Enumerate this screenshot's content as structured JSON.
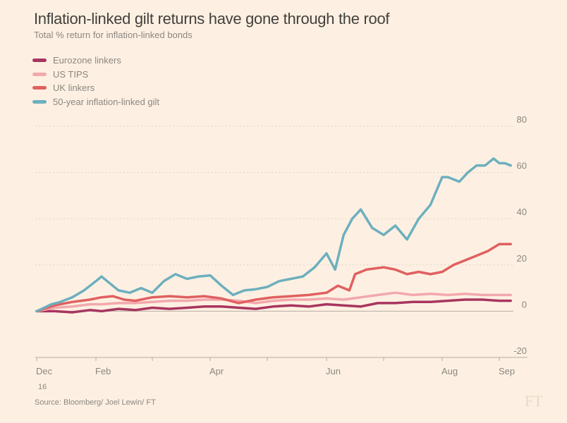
{
  "chart_data": {
    "type": "line",
    "title": "Inflation-linked gilt returns have gone through the roof",
    "subtitle": "Total % return for inflation-linked bonds",
    "xlabel": "",
    "ylabel": "",
    "ylim": [
      -20,
      80
    ],
    "yticks": [
      80,
      60,
      40,
      20,
      0,
      -20
    ],
    "xlim": [
      0,
      9.2
    ],
    "xticks": [
      {
        "pos": 0,
        "label": "Dec",
        "sub": "16"
      },
      {
        "pos": 1,
        "label": "Feb"
      },
      {
        "pos": 2,
        "label": ""
      },
      {
        "pos": 3,
        "label": "Apr"
      },
      {
        "pos": 4,
        "label": ""
      },
      {
        "pos": 5,
        "label": "Jun"
      },
      {
        "pos": 6,
        "label": ""
      },
      {
        "pos": 7,
        "label": "Aug"
      },
      {
        "pos": 8,
        "label": "Sep"
      }
    ],
    "grid": true,
    "legend_position": "top-left",
    "series": [
      {
        "name": "Eurozone linkers",
        "color": "#a8355f",
        "x": [
          0,
          0.3,
          0.6,
          0.9,
          1.1,
          1.4,
          1.7,
          2.0,
          2.3,
          2.6,
          2.9,
          3.2,
          3.5,
          3.8,
          4.1,
          4.4,
          4.7,
          5.0,
          5.3,
          5.6,
          5.9,
          6.2,
          6.5,
          6.8,
          7.1,
          7.4,
          7.7,
          8.0,
          8.2
        ],
        "values": [
          0,
          0,
          -0.5,
          0.5,
          0,
          1,
          0.5,
          1.5,
          1,
          1.5,
          2,
          2,
          1.5,
          1,
          2,
          2.5,
          2,
          3,
          2.5,
          2,
          3.5,
          3.5,
          4,
          4,
          4.5,
          5,
          5,
          4.5,
          4.5
        ]
      },
      {
        "name": "US TIPS",
        "color": "#f2a8ac",
        "x": [
          0,
          0.3,
          0.6,
          0.9,
          1.1,
          1.4,
          1.7,
          2.0,
          2.3,
          2.6,
          2.9,
          3.2,
          3.5,
          3.8,
          4.1,
          4.4,
          4.7,
          5.0,
          5.3,
          5.6,
          5.9,
          6.2,
          6.5,
          6.8,
          7.1,
          7.4,
          7.7,
          8.0,
          8.2
        ],
        "values": [
          0,
          1.5,
          2,
          3,
          3,
          3.5,
          3.5,
          4,
          4.5,
          4.5,
          5,
          5,
          4.5,
          3.5,
          4.5,
          5,
          5,
          5.5,
          5,
          6,
          7,
          8,
          7,
          7.5,
          7,
          7.5,
          7,
          7,
          7
        ]
      },
      {
        "name": "UK linkers",
        "color": "#e06060",
        "x": [
          0,
          0.3,
          0.6,
          0.9,
          1.1,
          1.3,
          1.5,
          1.7,
          2.0,
          2.3,
          2.6,
          2.9,
          3.2,
          3.5,
          3.8,
          4.1,
          4.4,
          4.7,
          5.0,
          5.2,
          5.4,
          5.5,
          5.7,
          6.0,
          6.2,
          6.4,
          6.6,
          6.8,
          7.0,
          7.2,
          7.4,
          7.6,
          7.8,
          8.0,
          8.2
        ],
        "values": [
          0,
          2.5,
          4,
          5,
          6,
          6.5,
          5,
          4.5,
          6,
          6.5,
          6,
          6.5,
          5.5,
          3.5,
          5,
          6,
          6.5,
          7,
          8,
          11,
          9,
          16,
          18,
          19,
          18,
          16,
          17,
          16,
          17,
          20,
          22,
          24,
          26,
          29,
          29
        ]
      },
      {
        "name": "50-year inflation-linked gilt",
        "color": "#6dafbe",
        "x": [
          0,
          0.25,
          0.4,
          0.6,
          0.8,
          1.0,
          1.1,
          1.2,
          1.4,
          1.6,
          1.8,
          2.0,
          2.2,
          2.4,
          2.6,
          2.8,
          3.0,
          3.2,
          3.4,
          3.6,
          3.8,
          4.0,
          4.2,
          4.4,
          4.6,
          4.8,
          5.0,
          5.15,
          5.3,
          5.45,
          5.6,
          5.8,
          6.0,
          6.2,
          6.4,
          6.6,
          6.8,
          7.0,
          7.1,
          7.3,
          7.45,
          7.6,
          7.75,
          7.9,
          8.0,
          8.1,
          8.2
        ],
        "values": [
          0,
          3,
          4,
          6,
          9,
          13,
          15,
          13,
          9,
          8,
          10,
          8,
          13,
          16,
          14,
          15,
          15.5,
          11,
          7,
          9,
          9.5,
          10.5,
          13,
          14,
          15,
          19,
          25,
          18,
          33,
          40,
          44,
          36,
          33,
          37,
          31,
          40,
          46,
          58,
          58,
          56,
          60,
          63,
          63,
          66,
          64,
          64,
          63
        ]
      }
    ]
  },
  "footer": {
    "source": "Source: Bloomberg/ Joel Lewin/ FT",
    "logo": "FT"
  }
}
